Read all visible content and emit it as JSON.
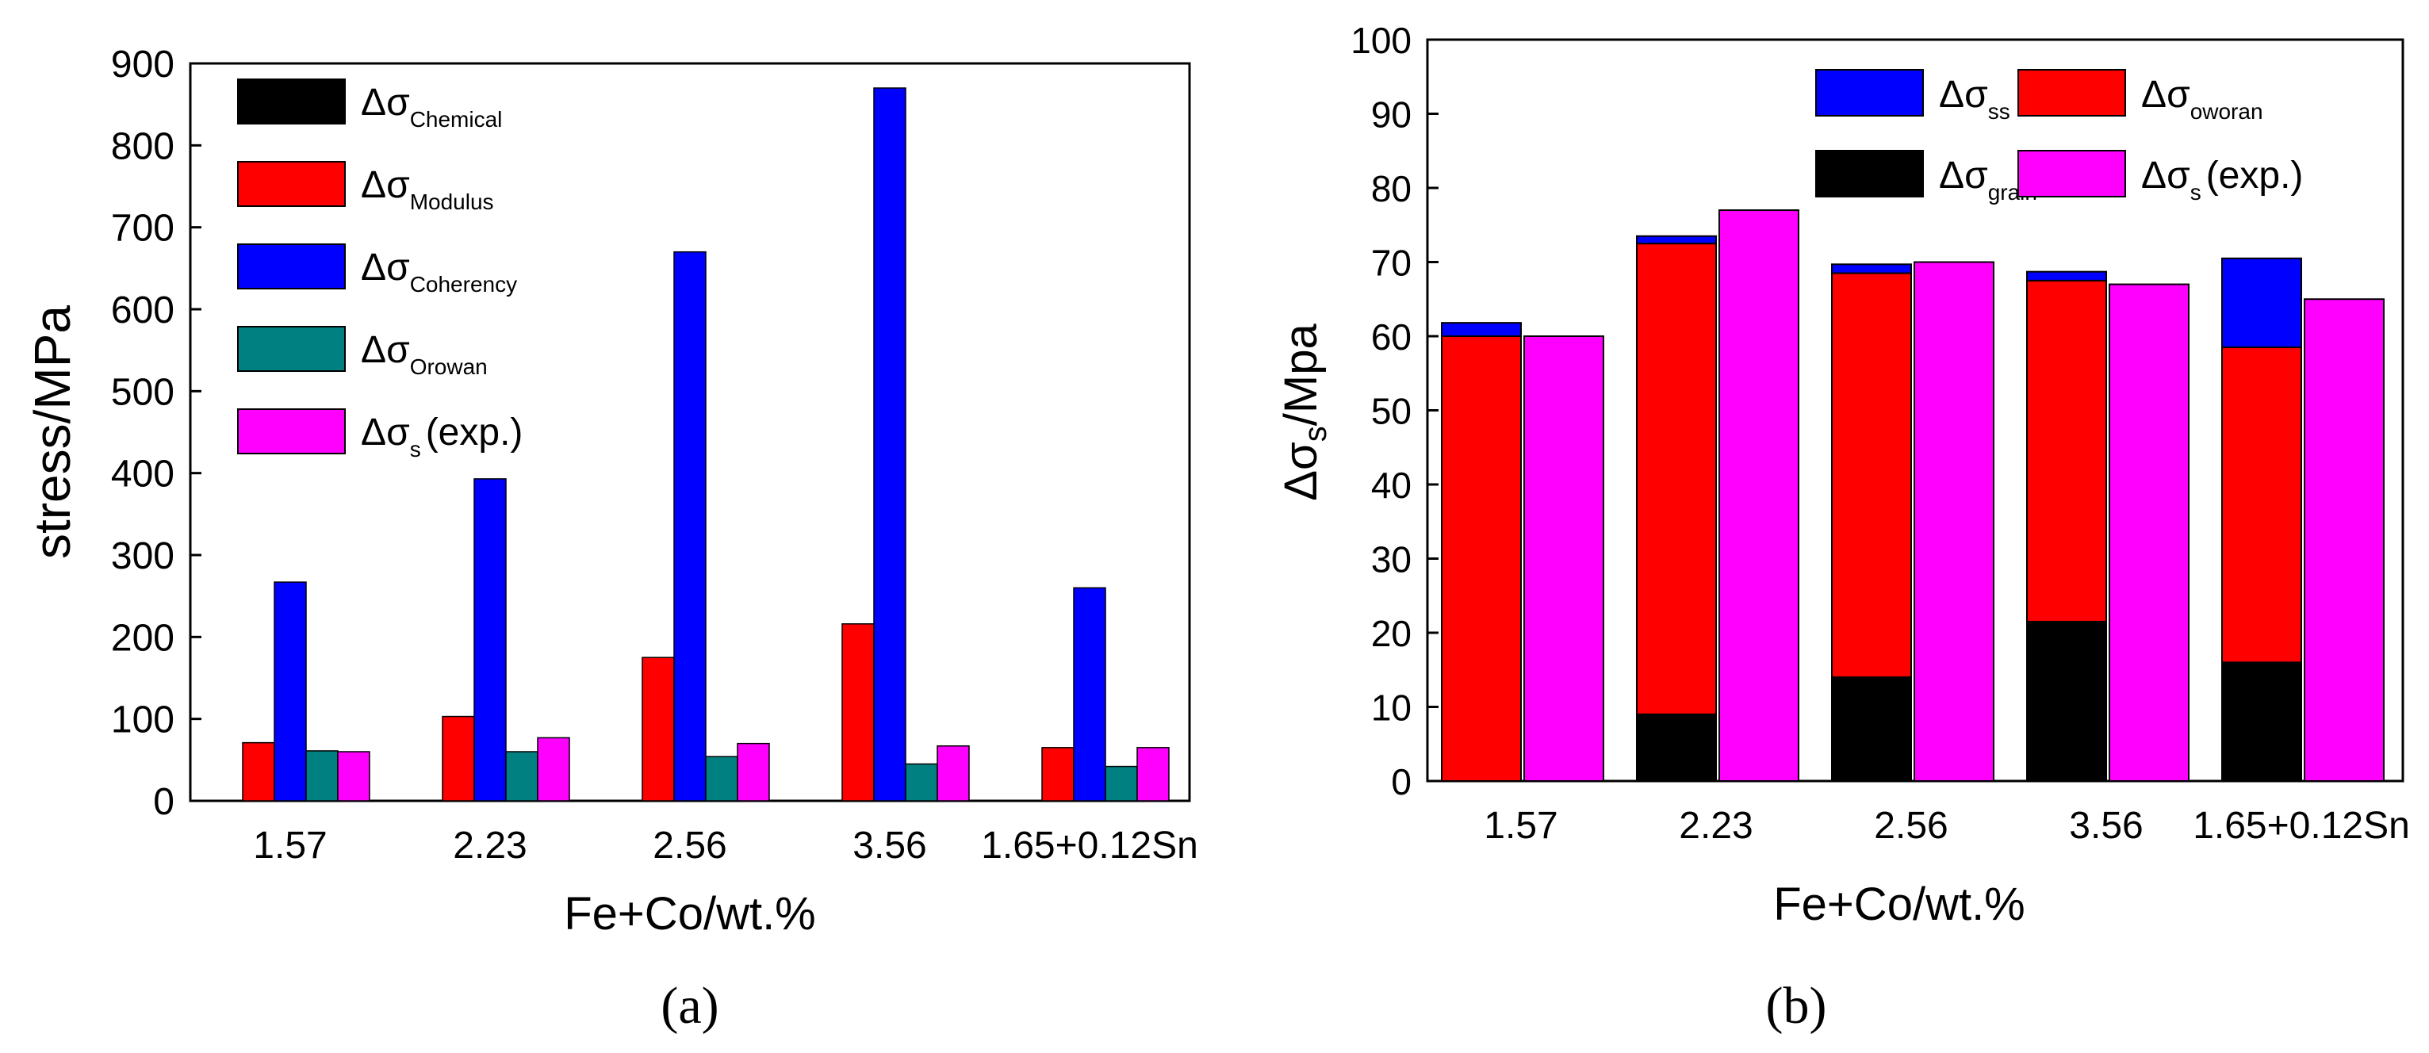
{
  "chart_data": [
    {
      "panel": "(a)",
      "type": "bar",
      "ylabel": "stress/MPa",
      "xlabel": "Fe+Co/wt.%",
      "caption": "(a)",
      "ylim": [
        0,
        900
      ],
      "yticks": [
        "0",
        "100",
        "200",
        "300",
        "400",
        "500",
        "600",
        "700",
        "800",
        "900"
      ],
      "categories": [
        "1.57",
        "2.23",
        "2.56",
        "3.56",
        "1.65+0.12Sn"
      ],
      "legend_position": "top-left",
      "series": [
        {
          "symbol": "Δσ",
          "sub": "Chemical",
          "color": "#000000",
          "values": [
            0,
            0,
            0,
            0,
            0
          ]
        },
        {
          "symbol": "Δσ",
          "sub": "Modulus",
          "color": "#ff0000",
          "values": [
            71,
            103,
            175,
            216,
            65
          ]
        },
        {
          "symbol": "Δσ",
          "sub": "Coherency",
          "color": "#0000ff",
          "values": [
            267,
            393,
            670,
            870,
            260
          ]
        },
        {
          "symbol": "Δσ",
          "sub": "Orowan",
          "color": "#008080",
          "values": [
            61,
            60,
            54,
            45,
            42
          ]
        },
        {
          "symbol": "Δσ",
          "sub": "s",
          "suffix": "(exp.)",
          "color": "#ff00ff",
          "values": [
            60,
            77,
            70,
            67,
            65
          ]
        }
      ]
    },
    {
      "panel": "(b)",
      "type": "stacked-bar",
      "ylabel_symbol": "Δσ",
      "ylabel_sub": "s",
      "ylabel_suffix": "/Mpa",
      "xlabel": "Fe+Co/wt.%",
      "caption": "(b)",
      "ylim": [
        0,
        100
      ],
      "yticks": [
        "0",
        "10",
        "20",
        "30",
        "40",
        "50",
        "60",
        "70",
        "80",
        "90",
        "100"
      ],
      "categories": [
        "1.57",
        "2.23",
        "2.56",
        "3.56",
        "1.65+0.12Sn"
      ],
      "legend_position": "top-right",
      "stack_series": [
        {
          "symbol": "Δσ",
          "sub": "grain",
          "color": "#000000",
          "values": [
            0,
            9,
            14,
            21.5,
            16
          ]
        },
        {
          "symbol": "Δσ",
          "sub": "oworan",
          "color": "#ff0000",
          "values": [
            60,
            63.5,
            54.5,
            46,
            42.5
          ]
        },
        {
          "symbol": "Δσ",
          "sub": "ss",
          "color": "#0000ff",
          "values": [
            1.8,
            1,
            1.2,
            1.2,
            12
          ]
        }
      ],
      "exp_series": {
        "symbol": "Δσ",
        "sub": "s",
        "suffix": "(exp.)",
        "color": "#ff00ff",
        "values": [
          60,
          77,
          70,
          67,
          65
        ]
      }
    }
  ]
}
